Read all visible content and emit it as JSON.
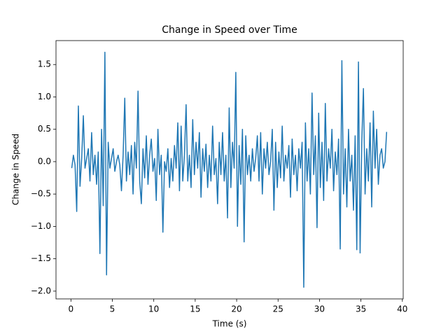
{
  "chart_data": {
    "type": "line",
    "title": "Change in Speed over Time",
    "xlabel": "Time (s)",
    "ylabel": "Change in Speed",
    "color": "#1f77b4",
    "x": [
      0.1,
      0.3,
      0.5,
      0.7,
      0.9,
      1.1,
      1.3,
      1.5,
      1.7,
      1.9,
      2.1,
      2.3,
      2.5,
      2.7,
      2.9,
      3.1,
      3.3,
      3.5,
      3.7,
      3.9,
      4.1,
      4.3,
      4.5,
      4.7,
      4.9,
      5.1,
      5.3,
      5.5,
      5.7,
      5.9,
      6.1,
      6.3,
      6.5,
      6.7,
      6.9,
      7.1,
      7.3,
      7.5,
      7.7,
      7.9,
      8.1,
      8.3,
      8.5,
      8.7,
      8.9,
      9.1,
      9.3,
      9.5,
      9.7,
      9.9,
      10.1,
      10.3,
      10.5,
      10.7,
      10.9,
      11.1,
      11.3,
      11.5,
      11.7,
      11.9,
      12.1,
      12.3,
      12.5,
      12.7,
      12.9,
      13.1,
      13.3,
      13.5,
      13.7,
      13.9,
      14.1,
      14.3,
      14.5,
      14.7,
      14.9,
      15.1,
      15.3,
      15.5,
      15.7,
      15.9,
      16.1,
      16.3,
      16.5,
      16.7,
      16.9,
      17.1,
      17.3,
      17.5,
      17.7,
      17.9,
      18.1,
      18.3,
      18.5,
      18.7,
      18.9,
      19.1,
      19.3,
      19.5,
      19.7,
      19.9,
      20.1,
      20.3,
      20.5,
      20.7,
      20.9,
      21.1,
      21.3,
      21.5,
      21.7,
      21.9,
      22.1,
      22.3,
      22.5,
      22.7,
      22.9,
      23.1,
      23.3,
      23.5,
      23.7,
      23.9,
      24.1,
      24.3,
      24.5,
      24.7,
      24.9,
      25.1,
      25.3,
      25.5,
      25.7,
      25.9,
      26.1,
      26.3,
      26.5,
      26.7,
      26.9,
      27.1,
      27.3,
      27.5,
      27.7,
      27.9,
      28.1,
      28.3,
      28.5,
      28.7,
      28.9,
      29.1,
      29.3,
      29.5,
      29.7,
      29.9,
      30.1,
      30.3,
      30.5,
      30.7,
      30.9,
      31.1,
      31.3,
      31.5,
      31.7,
      31.9,
      32.1,
      32.3,
      32.5,
      32.7,
      32.9,
      33.1,
      33.3,
      33.5,
      33.7,
      33.9,
      34.1,
      34.3,
      34.5,
      34.7,
      34.9,
      35.1,
      35.3,
      35.5,
      35.7,
      35.9,
      36.1,
      36.3,
      36.5,
      36.7,
      36.9,
      37.1,
      37.3,
      37.5,
      37.7,
      37.9,
      38.1
    ],
    "values": [
      -0.1,
      0.1,
      -0.05,
      -0.77,
      0.86,
      -0.38,
      0.05,
      0.71,
      -0.1,
      0.05,
      0.2,
      -0.3,
      0.45,
      -0.2,
      0.1,
      -0.35,
      0.15,
      -1.42,
      0.5,
      -0.68,
      1.69,
      -1.75,
      0.3,
      -0.1,
      0.05,
      0.2,
      -0.15,
      0.0,
      0.1,
      -0.05,
      -0.45,
      0.1,
      0.98,
      -0.3,
      0.15,
      -0.2,
      0.25,
      -0.5,
      0.3,
      -0.1,
      1.09,
      -0.3,
      -0.65,
      0.2,
      -0.25,
      0.4,
      -0.35,
      0.1,
      0.35,
      -0.15,
      0.05,
      -0.6,
      0.5,
      -0.2,
      0.1,
      -1.09,
      0.0,
      -0.15,
      0.2,
      -0.4,
      0.05,
      -0.3,
      0.25,
      -0.1,
      0.6,
      -0.45,
      0.55,
      -0.3,
      0.1,
      0.88,
      -0.3,
      0.1,
      -0.4,
      0.65,
      -0.2,
      0.3,
      -0.1,
      0.45,
      -0.55,
      0.2,
      -0.15,
      0.27,
      -0.4,
      0.1,
      -0.3,
      0.55,
      -0.2,
      0.05,
      -0.65,
      0.3,
      -0.2,
      0.45,
      -0.3,
      0.1,
      -0.87,
      0.83,
      -0.4,
      0.3,
      -0.1,
      1.38,
      -1.0,
      0.25,
      -0.35,
      0.5,
      -1.24,
      0.4,
      -0.2,
      0.1,
      -0.3,
      0.2,
      -0.15,
      0.05,
      0.4,
      -0.3,
      0.45,
      -0.5,
      0.2,
      -0.1,
      0.3,
      -0.2,
      0.0,
      0.5,
      -0.75,
      0.3,
      -0.4,
      0.15,
      -0.25,
      0.55,
      -0.3,
      0.1,
      -0.1,
      0.25,
      -0.55,
      0.35,
      -0.2,
      0.1,
      -0.45,
      0.2,
      -0.1,
      0.3,
      -1.94,
      0.6,
      -0.3,
      0.2,
      -0.5,
      1.06,
      -0.2,
      0.4,
      -1.02,
      0.75,
      -0.4,
      0.3,
      -0.6,
      0.9,
      -0.3,
      0.2,
      -0.1,
      0.5,
      -0.45,
      0.15,
      -0.2,
      0.35,
      -1.35,
      1.56,
      -0.5,
      0.2,
      -0.7,
      0.5,
      -0.3,
      0.1,
      -0.75,
      0.4,
      -1.36,
      1.54,
      -1.41,
      0.3,
      1.13,
      -0.5,
      0.2,
      -0.3,
      0.6,
      -0.7,
      0.78,
      -0.1,
      0.5,
      -0.35,
      0.1,
      0.2,
      -0.1,
      0.0,
      0.46
    ],
    "xlim": [
      -1.8,
      40.1
    ],
    "ylim": [
      -2.12,
      1.87
    ],
    "xticks": [
      0,
      5,
      10,
      15,
      20,
      25,
      30,
      35,
      40
    ],
    "yticks": [
      {
        "value": -2.0,
        "label": "−2.0"
      },
      {
        "value": -1.5,
        "label": "−1.5"
      },
      {
        "value": -1.0,
        "label": "−1.0"
      },
      {
        "value": -0.5,
        "label": "−0.5"
      },
      {
        "value": 0.0,
        "label": "0.0"
      },
      0.5,
      {
        "value": 1.0,
        "label": "1.0"
      },
      1.5
    ]
  }
}
